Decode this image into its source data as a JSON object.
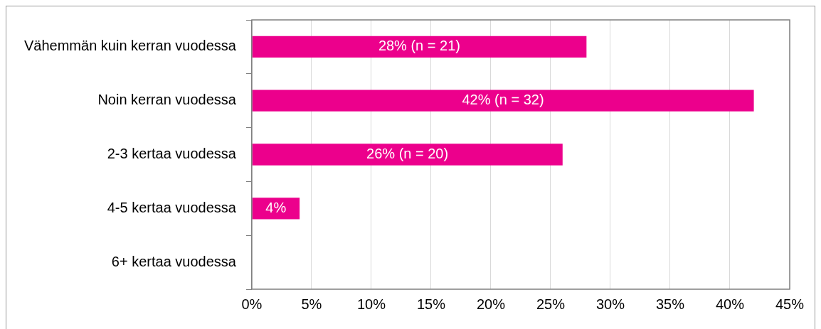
{
  "chart_data": {
    "type": "bar",
    "orientation": "horizontal",
    "categories": [
      "Vähemmän kuin kerran vuodessa",
      "Noin kerran vuodessa",
      "2-3 kertaa vuodessa",
      "4-5 kertaa vuodessa",
      "6+ kertaa vuodessa"
    ],
    "values": [
      28,
      42,
      26,
      4,
      0
    ],
    "value_labels": [
      "28% (n = 21)",
      "42% (n = 32)",
      "26% (n = 20)",
      "4%",
      null
    ],
    "color": "#ec008c",
    "xlim": [
      0,
      45
    ],
    "xticks": [
      {
        "value": 0,
        "label": "0%"
      },
      {
        "value": 5,
        "label": "5%"
      },
      {
        "value": 10,
        "label": "10%"
      },
      {
        "value": 15,
        "label": "15%"
      },
      {
        "value": 20,
        "label": "20%"
      },
      {
        "value": 25,
        "label": "25%"
      },
      {
        "value": 30,
        "label": "30%"
      },
      {
        "value": 35,
        "label": "35%"
      },
      {
        "value": 40,
        "label": "40%"
      },
      {
        "value": 45,
        "label": "45%"
      }
    ],
    "grid": "x",
    "legend": false
  }
}
